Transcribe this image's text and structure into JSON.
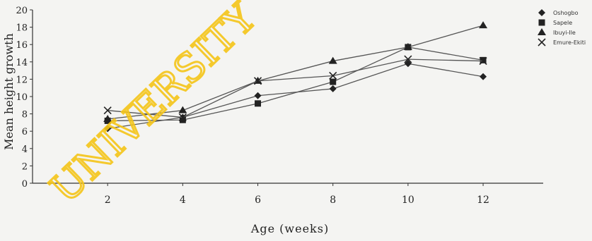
{
  "watermark": "UNIVERSITY",
  "chart_data": {
    "type": "line",
    "title": "",
    "xlabel": "Age (weeks)",
    "ylabel": "Mean height growth",
    "x": [
      2,
      4,
      6,
      8,
      10,
      12
    ],
    "xticks": [
      "2",
      "4",
      "6",
      "8",
      "10",
      "12"
    ],
    "xlim": [
      0,
      13.6
    ],
    "ylim": [
      0,
      20
    ],
    "yticks": [
      "0",
      "2",
      "4",
      "6",
      "8",
      "10",
      "12",
      "14",
      "16",
      "18",
      "20"
    ],
    "grid": false,
    "legend_position": "top-right",
    "series": [
      {
        "name": "Oshogbo",
        "marker": "diamond",
        "values": [
          6.3,
          7.6,
          10.1,
          10.9,
          13.8,
          12.3
        ]
      },
      {
        "name": "Sapele",
        "marker": "square",
        "values": [
          7.2,
          7.3,
          9.2,
          11.7,
          15.7,
          14.2
        ]
      },
      {
        "name": "Ibuyi-Ile",
        "marker": "triangle",
        "values": [
          7.4,
          8.4,
          11.8,
          14.1,
          15.7,
          18.2
        ]
      },
      {
        "name": "Emure-Ekiti",
        "marker": "x",
        "values": [
          8.4,
          7.6,
          11.8,
          12.4,
          14.3,
          14.1
        ]
      }
    ],
    "colors": {
      "line": "#555555",
      "marker": "#222222",
      "axis": "#333333",
      "watermark": "#f5c518"
    }
  }
}
